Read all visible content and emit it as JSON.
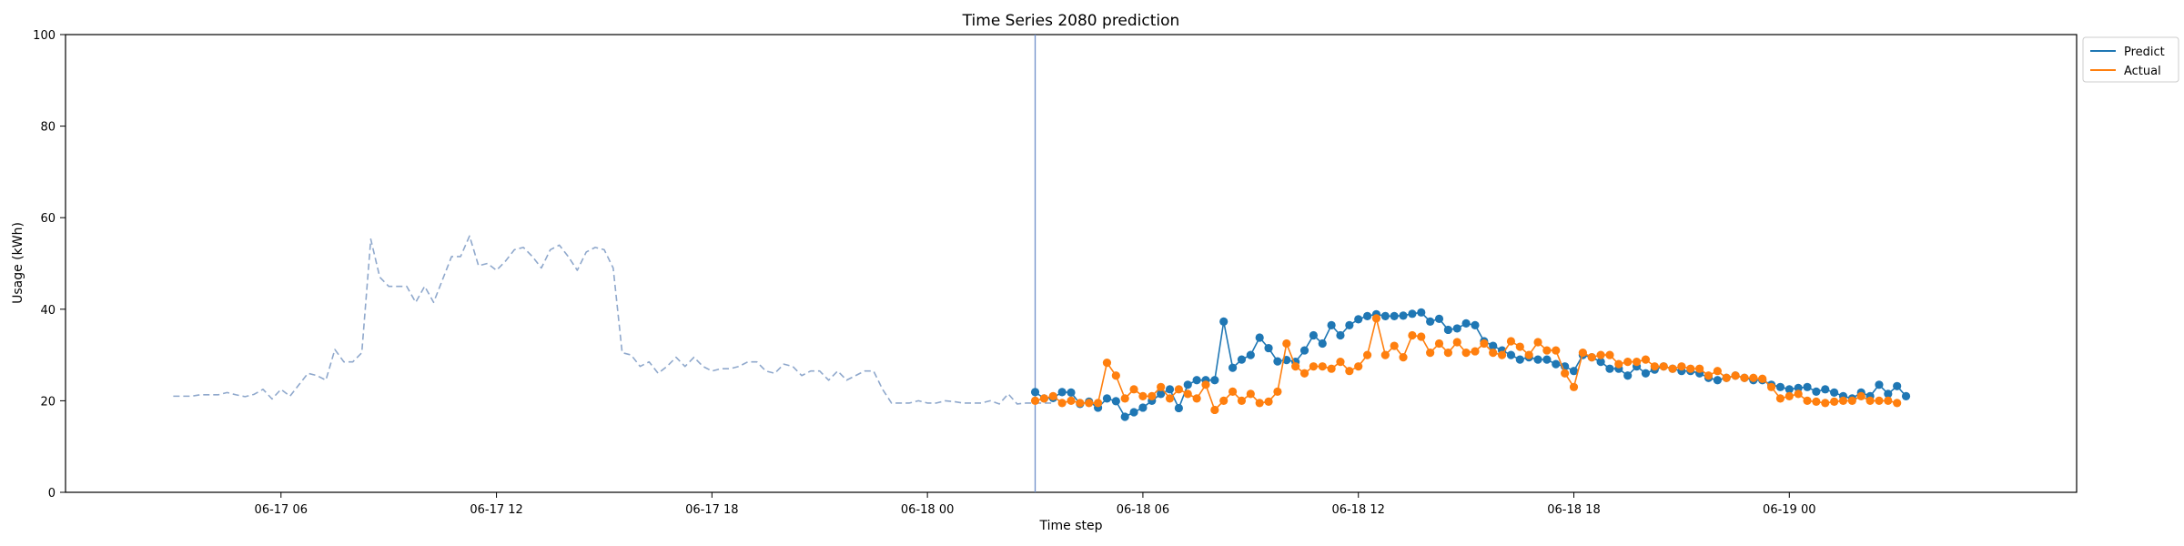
{
  "chart_data": {
    "type": "line",
    "title": "Time Series 2080 prediction",
    "xlabel": "Time step",
    "ylabel": "Usage (kWh)",
    "ylim": [
      0,
      100
    ],
    "xlim": [
      "2024-06-17 00:00",
      "2024-06-19 08:00"
    ],
    "grid": false,
    "legend_position": "upper-right-outside",
    "x_ticks": [
      "06-17 06",
      "06-17 12",
      "06-17 18",
      "06-18 00",
      "06-18 06",
      "06-18 12",
      "06-18 18",
      "06-19 00"
    ],
    "y_ticks": [
      "0",
      "20",
      "40",
      "60",
      "80",
      "100"
    ],
    "forecast_start": "2024-06-18 03:00",
    "legend": [
      {
        "name": "Predict",
        "color": "#1f77b4"
      },
      {
        "name": "Actual",
        "color": "#ff7f0e"
      }
    ],
    "series": [
      {
        "name": "",
        "style": "dashed",
        "color": "#8fa8cc",
        "start": "2024-06-17 03:00",
        "interval_minutes": 15,
        "values": [
          21.0,
          21.0,
          21.0,
          21.3,
          21.3,
          21.3,
          21.8,
          21.3,
          20.9,
          21.4,
          22.5,
          20.4,
          22.5,
          21.0,
          23.5,
          26.0,
          25.5,
          24.5,
          31.2,
          28.5,
          28.5,
          30.5,
          55.3,
          47.0,
          45.0,
          45.0,
          45.0,
          41.5,
          45.0,
          41.5,
          46.5,
          51.5,
          51.5,
          56.0,
          49.5,
          50.0,
          48.5,
          50.5,
          53.0,
          53.5,
          51.5,
          49.0,
          53.0,
          54.0,
          51.5,
          48.5,
          52.5,
          53.5,
          53.0,
          49.0,
          30.5,
          30.0,
          27.5,
          28.5,
          26.0,
          27.5,
          29.5,
          27.5,
          29.5,
          27.5,
          26.5,
          27.0,
          27.0,
          27.5,
          28.5,
          28.5,
          26.5,
          26.0,
          28.0,
          27.5,
          25.5,
          26.5,
          26.5,
          24.5,
          26.5,
          24.5,
          25.5,
          26.5,
          26.5,
          22.5,
          19.5,
          19.5,
          19.5,
          20.0,
          19.5,
          19.5,
          20.0,
          19.8,
          19.5,
          19.5,
          19.5,
          20.0,
          19.3,
          21.5,
          19.3,
          19.5,
          19.5,
          19.5,
          19.5
        ]
      },
      {
        "name": "Predict",
        "style": "solid-markers",
        "color": "#1f77b4",
        "start": "2024-06-18 03:00",
        "interval_minutes": 15,
        "values": [
          21.9,
          20.5,
          20.6,
          21.9,
          21.8,
          19.3,
          19.8,
          18.5,
          20.5,
          19.9,
          16.5,
          17.5,
          18.5,
          20.0,
          21.5,
          22.5,
          18.4,
          23.5,
          24.5,
          24.5,
          24.5,
          37.3,
          27.2,
          29.0,
          30.0,
          33.8,
          31.5,
          28.6,
          28.9,
          28.5,
          31.0,
          34.3,
          32.5,
          36.5,
          34.3,
          36.5,
          37.8,
          38.5,
          38.9,
          38.5,
          38.5,
          38.6,
          39.0,
          39.3,
          37.3,
          37.9,
          35.5,
          35.8,
          36.9,
          36.5,
          33.0,
          32.0,
          31.0,
          30.0,
          29.0,
          29.5,
          29.0,
          29.0,
          28.0,
          27.5,
          26.5,
          30.0,
          29.5,
          28.5,
          27.0,
          27.0,
          25.5,
          27.5,
          26.0,
          26.8,
          27.5,
          27.0,
          26.5,
          26.5,
          26.0,
          25.0,
          24.5,
          25.0,
          25.5,
          25.0,
          24.5,
          24.5,
          23.5,
          23.0,
          22.5,
          22.8,
          23.0,
          22.0,
          22.5,
          21.8,
          21.0,
          20.5,
          21.8,
          21.0,
          23.5,
          21.5,
          23.2,
          21.0
        ]
      },
      {
        "name": "Actual",
        "style": "solid-markers",
        "color": "#ff7f0e",
        "start": "2024-06-18 03:00",
        "interval_minutes": 15,
        "values": [
          20.0,
          20.5,
          21.0,
          19.5,
          20.0,
          19.5,
          19.5,
          19.5,
          28.3,
          25.5,
          20.5,
          22.5,
          21.0,
          21.0,
          23.0,
          20.5,
          22.5,
          21.5,
          20.5,
          23.5,
          18.0,
          20.0,
          22.0,
          20.0,
          21.5,
          19.5,
          19.8,
          22.0,
          32.5,
          27.5,
          26.0,
          27.5,
          27.5,
          27.0,
          28.5,
          26.5,
          27.5,
          30.0,
          38.0,
          30.0,
          32.0,
          29.5,
          34.3,
          34.0,
          30.5,
          32.5,
          30.5,
          32.8,
          30.5,
          30.8,
          32.5,
          30.5,
          30.0,
          33.0,
          31.8,
          30.0,
          32.8,
          31.0,
          31.0,
          26.0,
          23.0,
          30.5,
          29.5,
          30.0,
          30.0,
          28.0,
          28.5,
          28.5,
          29.0,
          27.5,
          27.5,
          27.0,
          27.5,
          27.0,
          27.0,
          25.5,
          26.5,
          25.0,
          25.5,
          25.0,
          25.0,
          24.8,
          23.0,
          20.5,
          21.0,
          21.5,
          20.0,
          19.8,
          19.5,
          19.8,
          20.0,
          20.0,
          21.0,
          20.0,
          20.0,
          20.0,
          19.5
        ]
      }
    ]
  }
}
